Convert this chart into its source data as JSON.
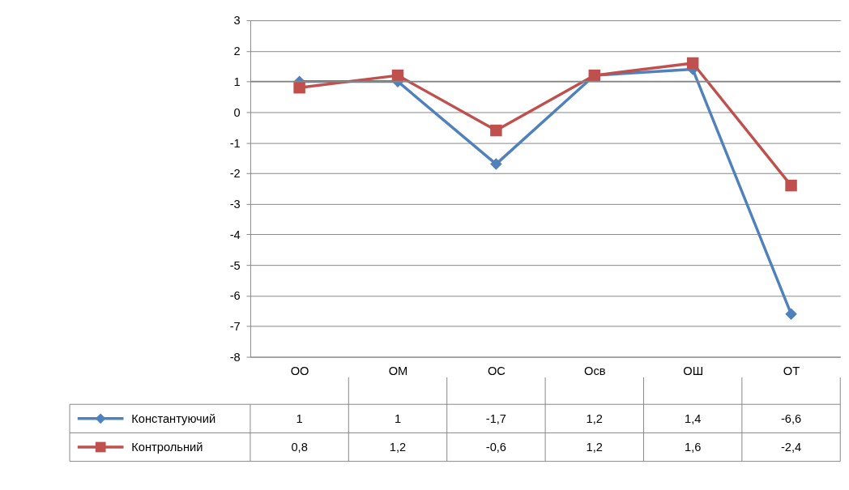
{
  "chart_data": {
    "type": "line",
    "categories": [
      "ОО",
      "ОМ",
      "ОС",
      "Осв",
      "ОШ",
      "ОТ"
    ],
    "series": [
      {
        "name": "Константуючий",
        "color": "#4f81bd",
        "marker": "diamond",
        "values": [
          1,
          1,
          -1.7,
          1.2,
          1.4,
          -6.6
        ],
        "value_labels": [
          "1",
          "1",
          "-1,7",
          "1,2",
          "1,4",
          "-6,6"
        ]
      },
      {
        "name": "Контрольний",
        "color": "#c0504d",
        "marker": "square",
        "values": [
          0.8,
          1.2,
          -0.6,
          1.2,
          1.6,
          -2.4
        ],
        "value_labels": [
          "0,8",
          "1,2",
          "-0,6",
          "1,2",
          "1,6",
          "-2,4"
        ]
      }
    ],
    "ylim": [
      -8,
      3
    ],
    "yticks": [
      -8,
      -7,
      -6,
      -5,
      -4,
      -3,
      -2,
      -1,
      0,
      1,
      2,
      3
    ],
    "grid": "y",
    "legend": "bottom",
    "line_style": "solid",
    "ref_lines": [
      {
        "axis": "y",
        "value": 1,
        "color": "#868686"
      }
    ]
  }
}
